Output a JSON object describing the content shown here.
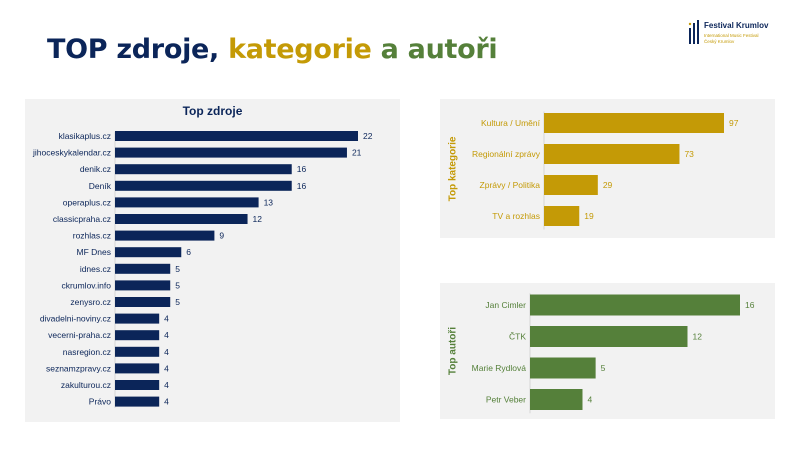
{
  "title": {
    "part1": "TOP zdroje, ",
    "part2": "kategorie",
    "part3": " a autoři"
  },
  "logo": {
    "name": "Festival Krumlov",
    "subtitle_line1": "International Music Festival",
    "subtitle_line2": "Český Krumlov",
    "icon": "festival-logo-mark"
  },
  "colors": {
    "navy": "#0b2559",
    "gold": "#c49a06",
    "green": "#55803a",
    "panel": "#f2f2f2"
  },
  "chart_data": [
    {
      "type": "bar",
      "orientation": "horizontal",
      "title": "Top zdroje",
      "color": "#0b2559",
      "categories": [
        "klasikaplus.cz",
        "jihoceskykalendar.cz",
        "denik.cz",
        "Deník",
        "operaplus.cz",
        "classicpraha.cz",
        "rozhlas.cz",
        "MF Dnes",
        "idnes.cz",
        "ckrumlov.info",
        "zenysro.cz",
        "divadelni-noviny.cz",
        "vecerni-praha.cz",
        "nasregion.cz",
        "seznamzpravy.cz",
        "zakulturou.cz",
        "Právo"
      ],
      "values": [
        22,
        21,
        16,
        16,
        13,
        12,
        9,
        6,
        5,
        5,
        5,
        4,
        4,
        4,
        4,
        4,
        4
      ],
      "grid": false,
      "legend": "none"
    },
    {
      "type": "bar",
      "orientation": "horizontal",
      "title": "Top kategorie",
      "color": "#c49a06",
      "categories": [
        "Kultura / Umění",
        "Regionální zprávy",
        "Zprávy / Politika",
        "TV a rozhlas"
      ],
      "values": [
        97,
        73,
        29,
        19
      ],
      "grid": false,
      "legend": "none"
    },
    {
      "type": "bar",
      "orientation": "horizontal",
      "title": "Top autoři",
      "color": "#55803a",
      "categories": [
        "Jan Cimler",
        "ČTK",
        "Marie Rydlová",
        "Petr Veber"
      ],
      "values": [
        16,
        12,
        5,
        4
      ],
      "grid": false,
      "legend": "none"
    }
  ]
}
